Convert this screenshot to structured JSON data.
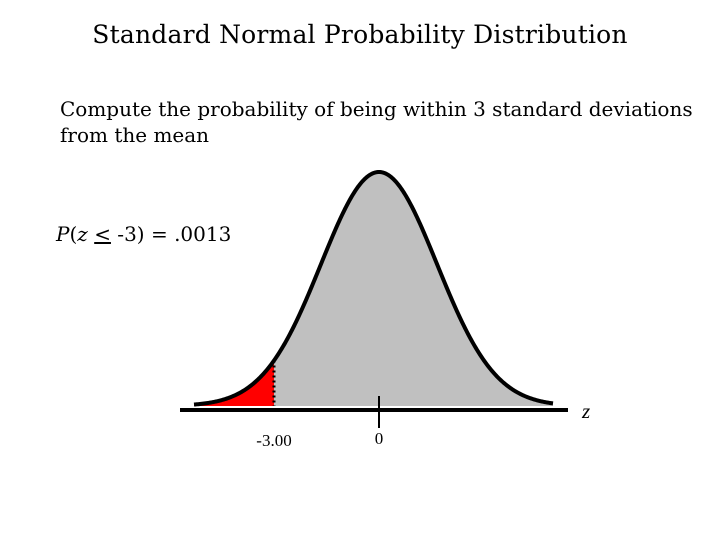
{
  "title": "Standard Normal Probability Distribution",
  "subtitle_line1": "Compute the probability of being within 3 standard deviations",
  "subtitle_line2": "from the mean",
  "probability": {
    "var_p": "P",
    "open": "(",
    "var_z": "z",
    "operator": "<",
    "rest": " -3) = .0013"
  },
  "axis": {
    "symbol": "z",
    "tick_mean_label": "0",
    "tick_cutoff_label": "-3.00"
  },
  "colors": {
    "curve_fill": "#c0c0c0",
    "tail_fill": "#ff0000",
    "outline": "#000000"
  }
}
